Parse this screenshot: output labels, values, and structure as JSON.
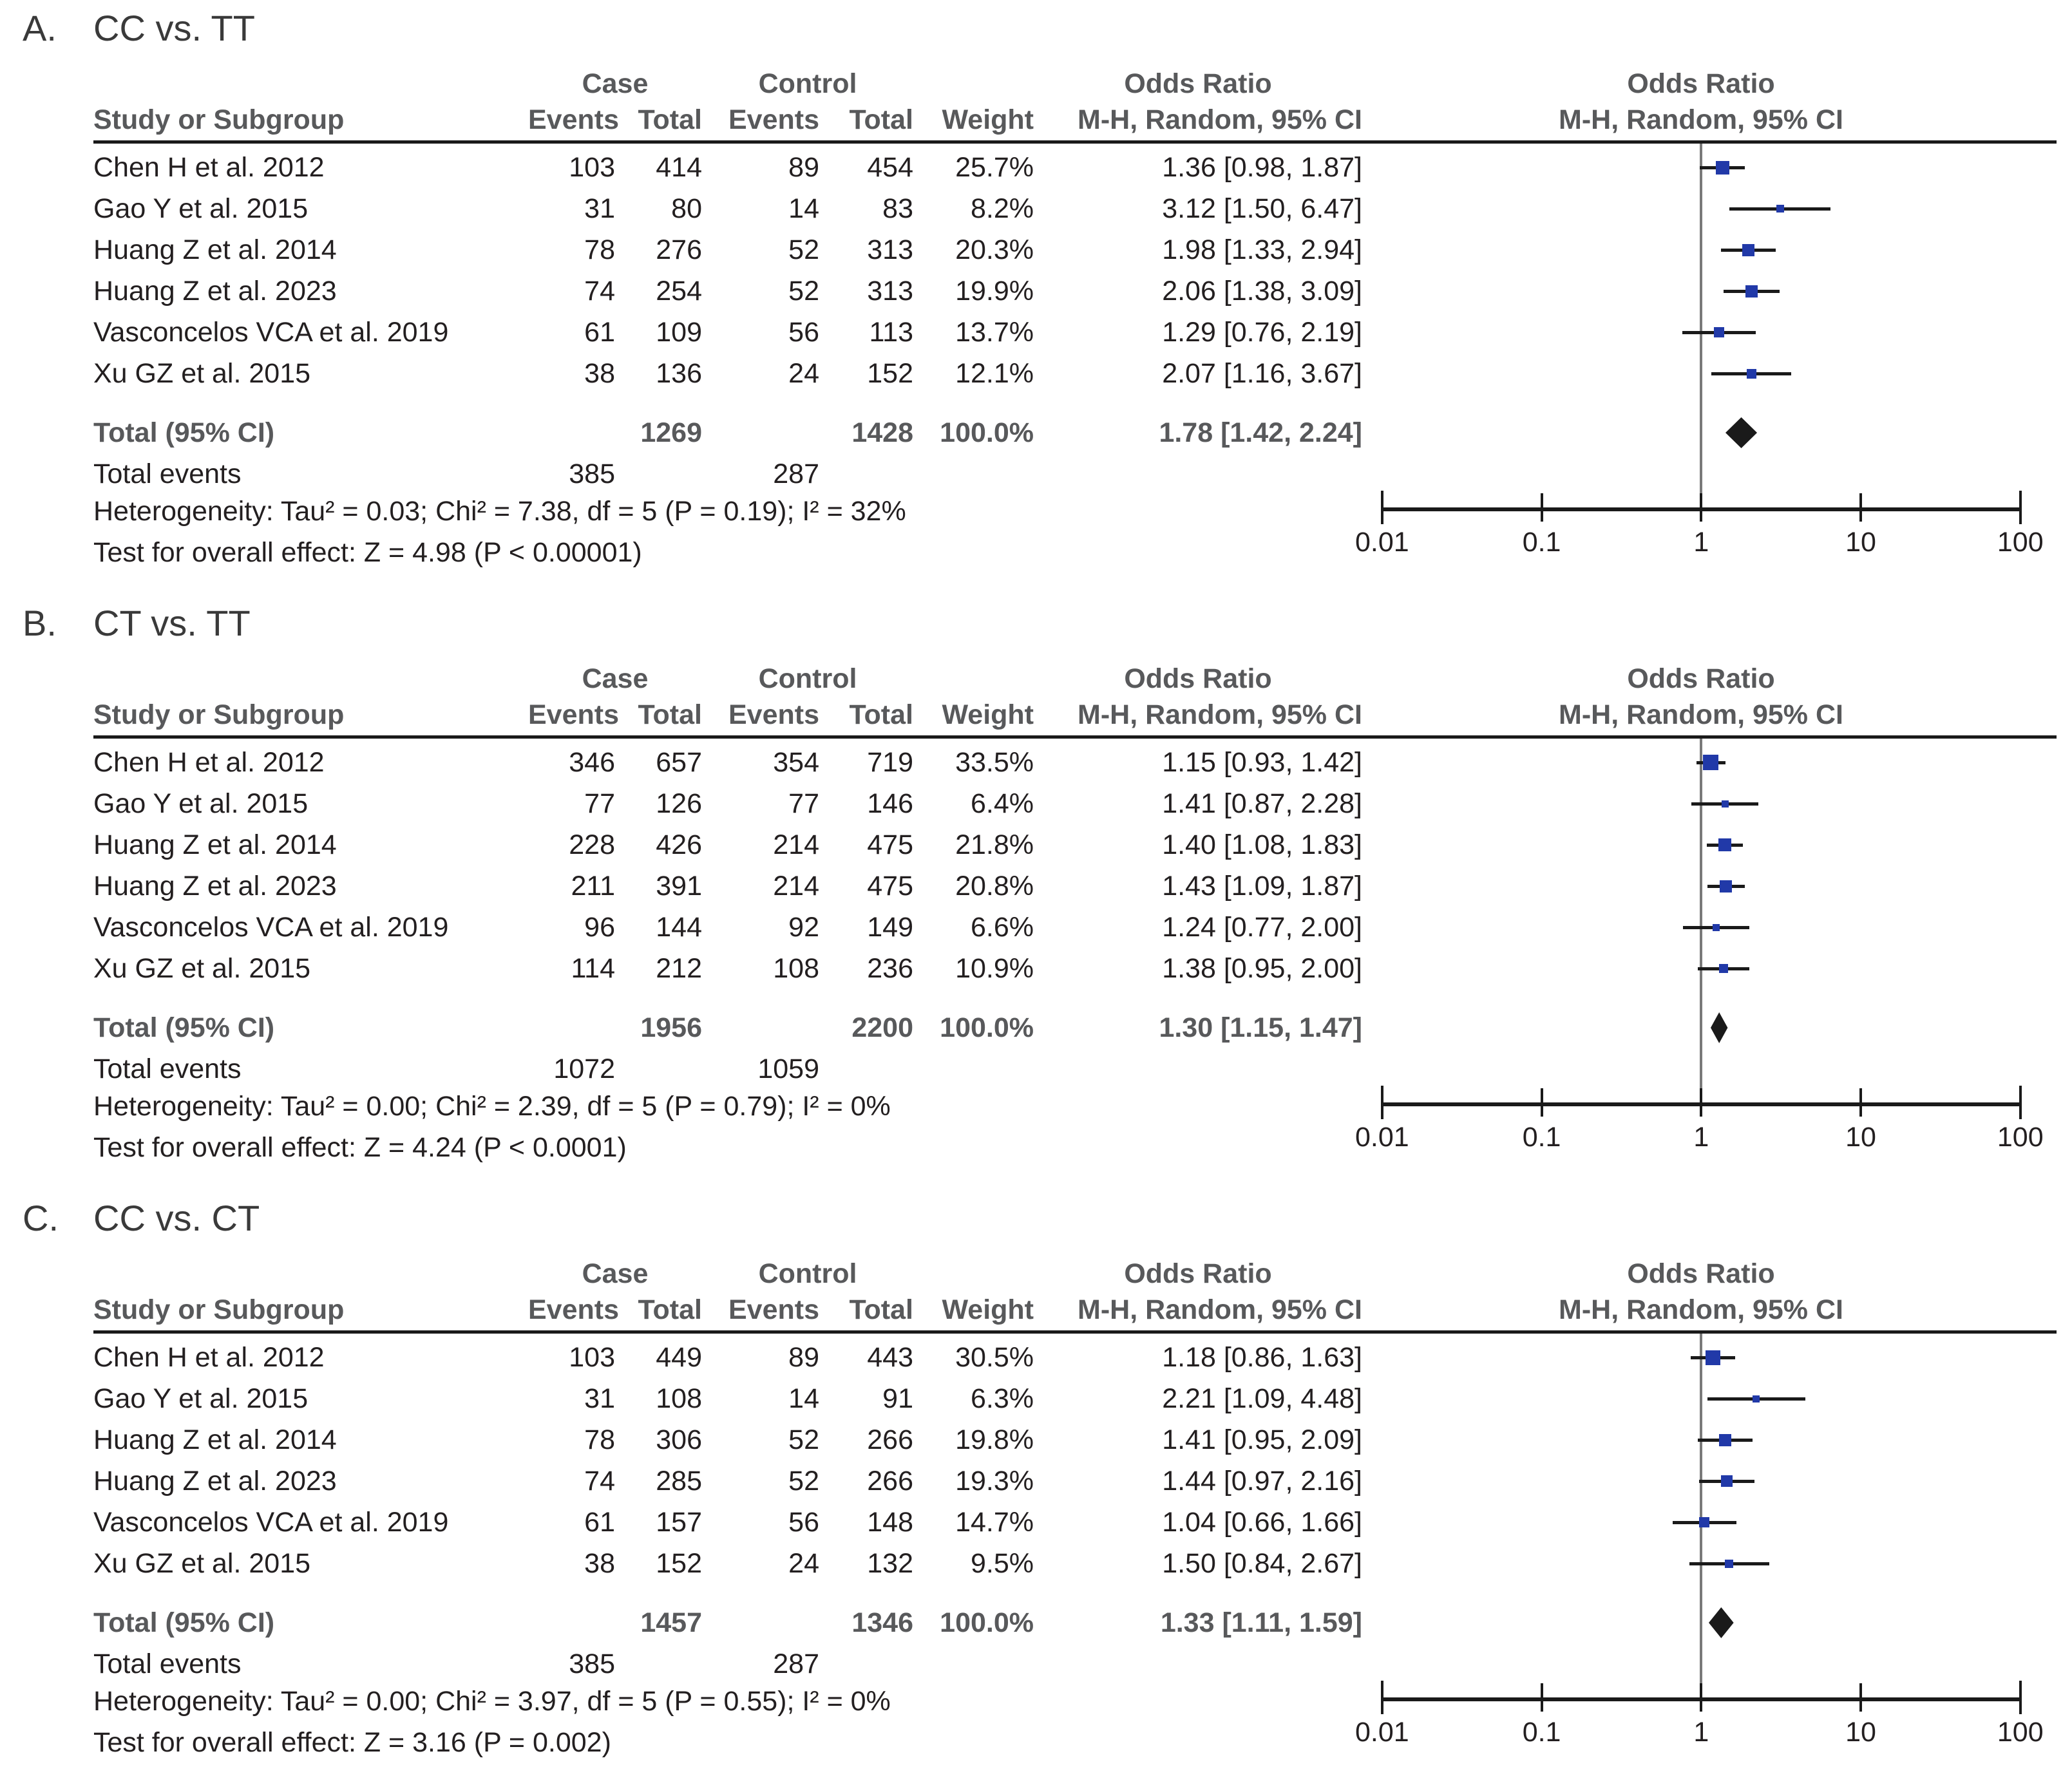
{
  "figure": {
    "axis_ticks": [
      "0.01",
      "0.1",
      "1",
      "10",
      "100"
    ],
    "colors": {
      "square": "#2139a8",
      "diamond": "#1a1a1a",
      "ink": "#1a1a1a",
      "ref_line": "#7a7a7a",
      "header_text": "#58595b",
      "data_text": "#231f20",
      "title_text": "#3a3a3a"
    }
  },
  "table_headers": {
    "study": "Study or Subgroup",
    "case": "Case",
    "control": "Control",
    "events": "Events",
    "total": "Total",
    "weight": "Weight",
    "odds_ratio": "Odds Ratio",
    "mh": "M-H, Random, 95% CI"
  },
  "panels": [
    {
      "label": "A.",
      "title": "CC vs. TT",
      "studies": [
        {
          "name": "Chen H et al. 2012",
          "case_events": "103",
          "case_total": "414",
          "control_events": "89",
          "control_total": "454",
          "weight": "25.7%",
          "or_text": "1.36 [0.98, 1.87]"
        },
        {
          "name": "Gao Y et al. 2015",
          "case_events": "31",
          "case_total": "80",
          "control_events": "14",
          "control_total": "83",
          "weight": "8.2%",
          "or_text": "3.12 [1.50, 6.47]"
        },
        {
          "name": "Huang Z et al. 2014",
          "case_events": "78",
          "case_total": "276",
          "control_events": "52",
          "control_total": "313",
          "weight": "20.3%",
          "or_text": "1.98 [1.33, 2.94]"
        },
        {
          "name": "Huang Z et al. 2023",
          "case_events": "74",
          "case_total": "254",
          "control_events": "52",
          "control_total": "313",
          "weight": "19.9%",
          "or_text": "2.06 [1.38, 3.09]"
        },
        {
          "name": "Vasconcelos VCA et al. 2019",
          "case_events": "61",
          "case_total": "109",
          "control_events": "56",
          "control_total": "113",
          "weight": "13.7%",
          "or_text": "1.29 [0.76, 2.19]"
        },
        {
          "name": "Xu GZ et al. 2015",
          "case_events": "38",
          "case_total": "136",
          "control_events": "24",
          "control_total": "152",
          "weight": "12.1%",
          "or_text": "2.07 [1.16, 3.67]"
        }
      ],
      "total": {
        "label": "Total (95% CI)",
        "case_total": "1269",
        "control_total": "1428",
        "weight": "100.0%",
        "or_text": "1.78 [1.42, 2.24]"
      },
      "total_events": {
        "label": "Total events",
        "case": "385",
        "control": "287"
      },
      "heterogeneity": "Heterogeneity: Tau² = 0.03; Chi² = 7.38, df = 5 (P = 0.19); I² = 32%",
      "overall": "Test for overall effect: Z = 4.98 (P < 0.00001)"
    },
    {
      "label": "B.",
      "title": "CT vs. TT",
      "studies": [
        {
          "name": "Chen H et al. 2012",
          "case_events": "346",
          "case_total": "657",
          "control_events": "354",
          "control_total": "719",
          "weight": "33.5%",
          "or_text": "1.15 [0.93, 1.42]"
        },
        {
          "name": "Gao Y et al. 2015",
          "case_events": "77",
          "case_total": "126",
          "control_events": "77",
          "control_total": "146",
          "weight": "6.4%",
          "or_text": "1.41 [0.87, 2.28]"
        },
        {
          "name": "Huang Z et al. 2014",
          "case_events": "228",
          "case_total": "426",
          "control_events": "214",
          "control_total": "475",
          "weight": "21.8%",
          "or_text": "1.40 [1.08, 1.83]"
        },
        {
          "name": "Huang Z et al. 2023",
          "case_events": "211",
          "case_total": "391",
          "control_events": "214",
          "control_total": "475",
          "weight": "20.8%",
          "or_text": "1.43 [1.09, 1.87]"
        },
        {
          "name": "Vasconcelos VCA et al. 2019",
          "case_events": "96",
          "case_total": "144",
          "control_events": "92",
          "control_total": "149",
          "weight": "6.6%",
          "or_text": "1.24 [0.77, 2.00]"
        },
        {
          "name": "Xu GZ et al. 2015",
          "case_events": "114",
          "case_total": "212",
          "control_events": "108",
          "control_total": "236",
          "weight": "10.9%",
          "or_text": "1.38 [0.95, 2.00]"
        }
      ],
      "total": {
        "label": "Total (95% CI)",
        "case_total": "1956",
        "control_total": "2200",
        "weight": "100.0%",
        "or_text": "1.30 [1.15, 1.47]"
      },
      "total_events": {
        "label": "Total events",
        "case": "1072",
        "control": "1059"
      },
      "heterogeneity": "Heterogeneity: Tau² = 0.00; Chi² = 2.39, df = 5 (P = 0.79); I² = 0%",
      "overall": "Test for overall effect: Z = 4.24 (P < 0.0001)"
    },
    {
      "label": "C.",
      "title": "CC vs. CT",
      "studies": [
        {
          "name": "Chen H et al. 2012",
          "case_events": "103",
          "case_total": "449",
          "control_events": "89",
          "control_total": "443",
          "weight": "30.5%",
          "or_text": "1.18 [0.86, 1.63]"
        },
        {
          "name": "Gao Y et al. 2015",
          "case_events": "31",
          "case_total": "108",
          "control_events": "14",
          "control_total": "91",
          "weight": "6.3%",
          "or_text": "2.21 [1.09, 4.48]"
        },
        {
          "name": "Huang Z et al. 2014",
          "case_events": "78",
          "case_total": "306",
          "control_events": "52",
          "control_total": "266",
          "weight": "19.8%",
          "or_text": "1.41 [0.95, 2.09]"
        },
        {
          "name": "Huang Z et al. 2023",
          "case_events": "74",
          "case_total": "285",
          "control_events": "52",
          "control_total": "266",
          "weight": "19.3%",
          "or_text": "1.44 [0.97, 2.16]"
        },
        {
          "name": "Vasconcelos VCA et al. 2019",
          "case_events": "61",
          "case_total": "157",
          "control_events": "56",
          "control_total": "148",
          "weight": "14.7%",
          "or_text": "1.04 [0.66, 1.66]"
        },
        {
          "name": "Xu GZ et al. 2015",
          "case_events": "38",
          "case_total": "152",
          "control_events": "24",
          "control_total": "132",
          "weight": "9.5%",
          "or_text": "1.50 [0.84, 2.67]"
        }
      ],
      "total": {
        "label": "Total (95% CI)",
        "case_total": "1457",
        "control_total": "1346",
        "weight": "100.0%",
        "or_text": "1.33 [1.11, 1.59]"
      },
      "total_events": {
        "label": "Total events",
        "case": "385",
        "control": "287"
      },
      "heterogeneity": "Heterogeneity: Tau² = 0.00; Chi² = 3.97, df = 5 (P = 0.55); I² = 0%",
      "overall": "Test for overall effect: Z = 3.16 (P = 0.002)"
    }
  ],
  "chart_data": [
    {
      "type": "forest",
      "title": "CC vs. TT",
      "effect_measure": "Odds Ratio, M-H, Random, 95% CI",
      "x_scale": "log10",
      "x_ticks": [
        0.01,
        0.1,
        1,
        10,
        100
      ],
      "xlim": [
        0.01,
        100
      ],
      "studies": [
        {
          "name": "Chen H et al. 2012",
          "or": 1.36,
          "ci_low": 0.98,
          "ci_high": 1.87,
          "weight_pct": 25.7
        },
        {
          "name": "Gao Y et al. 2015",
          "or": 3.12,
          "ci_low": 1.5,
          "ci_high": 6.47,
          "weight_pct": 8.2
        },
        {
          "name": "Huang Z et al. 2014",
          "or": 1.98,
          "ci_low": 1.33,
          "ci_high": 2.94,
          "weight_pct": 20.3
        },
        {
          "name": "Huang Z et al. 2023",
          "or": 2.06,
          "ci_low": 1.38,
          "ci_high": 3.09,
          "weight_pct": 19.9
        },
        {
          "name": "Vasconcelos VCA et al. 2019",
          "or": 1.29,
          "ci_low": 0.76,
          "ci_high": 2.19,
          "weight_pct": 13.7
        },
        {
          "name": "Xu GZ et al. 2015",
          "or": 2.07,
          "ci_low": 1.16,
          "ci_high": 3.67,
          "weight_pct": 12.1
        }
      ],
      "total": {
        "label": "Total (95% CI)",
        "or": 1.78,
        "ci_low": 1.42,
        "ci_high": 2.24,
        "weight_pct": 100.0
      }
    },
    {
      "type": "forest",
      "title": "CT vs. TT",
      "effect_measure": "Odds Ratio, M-H, Random, 95% CI",
      "x_scale": "log10",
      "x_ticks": [
        0.01,
        0.1,
        1,
        10,
        100
      ],
      "xlim": [
        0.01,
        100
      ],
      "studies": [
        {
          "name": "Chen H et al. 2012",
          "or": 1.15,
          "ci_low": 0.93,
          "ci_high": 1.42,
          "weight_pct": 33.5
        },
        {
          "name": "Gao Y et al. 2015",
          "or": 1.41,
          "ci_low": 0.87,
          "ci_high": 2.28,
          "weight_pct": 6.4
        },
        {
          "name": "Huang Z et al. 2014",
          "or": 1.4,
          "ci_low": 1.08,
          "ci_high": 1.83,
          "weight_pct": 21.8
        },
        {
          "name": "Huang Z et al. 2023",
          "or": 1.43,
          "ci_low": 1.09,
          "ci_high": 1.87,
          "weight_pct": 20.8
        },
        {
          "name": "Vasconcelos VCA et al. 2019",
          "or": 1.24,
          "ci_low": 0.77,
          "ci_high": 2.0,
          "weight_pct": 6.6
        },
        {
          "name": "Xu GZ et al. 2015",
          "or": 1.38,
          "ci_low": 0.95,
          "ci_high": 2.0,
          "weight_pct": 10.9
        }
      ],
      "total": {
        "label": "Total (95% CI)",
        "or": 1.3,
        "ci_low": 1.15,
        "ci_high": 1.47,
        "weight_pct": 100.0
      }
    },
    {
      "type": "forest",
      "title": "CC vs. CT",
      "effect_measure": "Odds Ratio, M-H, Random, 95% CI",
      "x_scale": "log10",
      "x_ticks": [
        0.01,
        0.1,
        1,
        10,
        100
      ],
      "xlim": [
        0.01,
        100
      ],
      "studies": [
        {
          "name": "Chen H et al. 2012",
          "or": 1.18,
          "ci_low": 0.86,
          "ci_high": 1.63,
          "weight_pct": 30.5
        },
        {
          "name": "Gao Y et al. 2015",
          "or": 2.21,
          "ci_low": 1.09,
          "ci_high": 4.48,
          "weight_pct": 6.3
        },
        {
          "name": "Huang Z et al. 2014",
          "or": 1.41,
          "ci_low": 0.95,
          "ci_high": 2.09,
          "weight_pct": 19.8
        },
        {
          "name": "Huang Z et al. 2023",
          "or": 1.44,
          "ci_low": 0.97,
          "ci_high": 2.16,
          "weight_pct": 19.3
        },
        {
          "name": "Vasconcelos VCA et al. 2019",
          "or": 1.04,
          "ci_low": 0.66,
          "ci_high": 1.66,
          "weight_pct": 14.7
        },
        {
          "name": "Xu GZ et al. 2015",
          "or": 1.5,
          "ci_low": 0.84,
          "ci_high": 2.67,
          "weight_pct": 9.5
        }
      ],
      "total": {
        "label": "Total (95% CI)",
        "or": 1.33,
        "ci_low": 1.11,
        "ci_high": 1.59,
        "weight_pct": 100.0
      }
    }
  ]
}
